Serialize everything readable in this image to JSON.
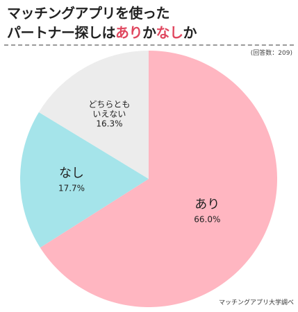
{
  "title": {
    "line1": "マッチングアプリを使った",
    "line2_pre": "パートナー探しは",
    "line2_ari": "あり",
    "line2_ka1": "か",
    "line2_nashi": "なし",
    "line2_ka2": "か"
  },
  "respondents_note": "(回答数：209)",
  "source": "マッチングアプリ大学調べ",
  "chart_data": {
    "type": "pie",
    "start_angle_deg": 0,
    "direction": "clockwise",
    "slices": [
      {
        "label": "あり",
        "value": 66.0,
        "value_label": "66.0%",
        "color": "#ffb6c1"
      },
      {
        "label": "なし",
        "value": 17.7,
        "value_label": "17.7%",
        "color": "#a5e4ea"
      },
      {
        "label_lines": [
          "どちらとも",
          "いえない"
        ],
        "value": 16.3,
        "value_label": "16.3%",
        "color": "#ececec"
      }
    ]
  }
}
